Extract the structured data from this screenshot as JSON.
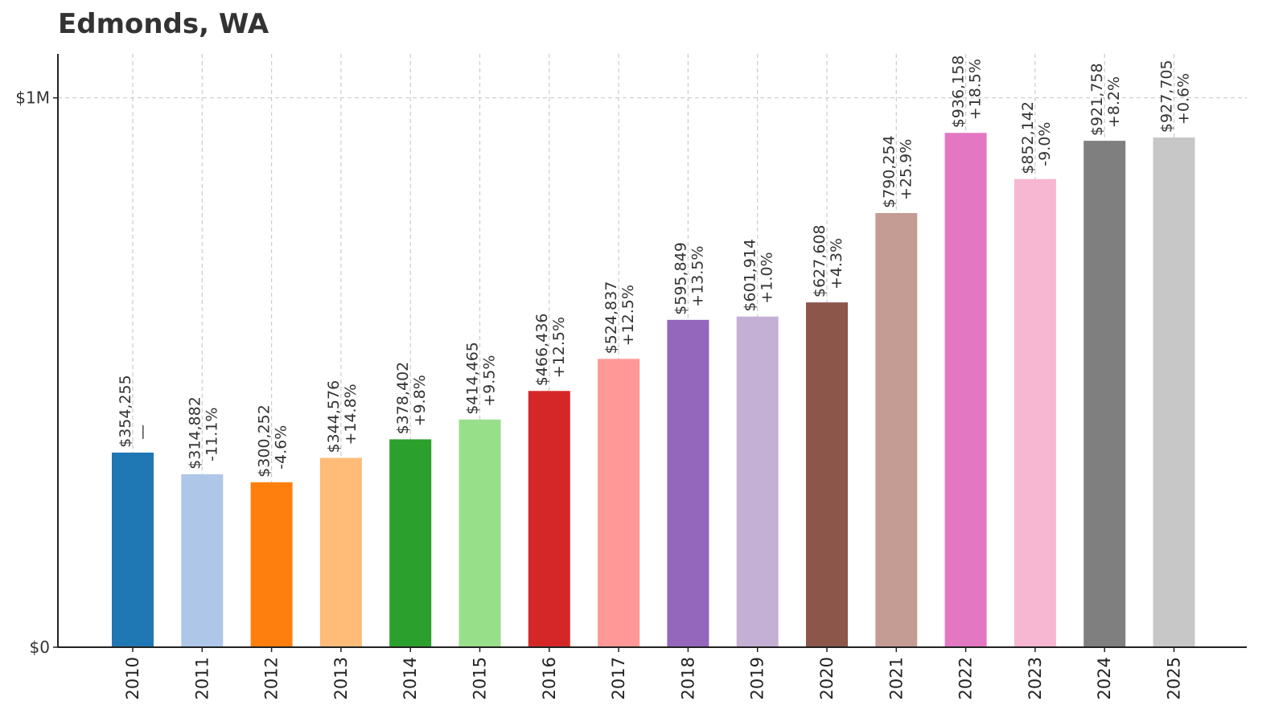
{
  "chart_data": {
    "type": "bar",
    "title": "Edmonds, WA",
    "xlabel": "",
    "ylabel": "",
    "categories": [
      "2010",
      "2011",
      "2012",
      "2013",
      "2014",
      "2015",
      "2016",
      "2017",
      "2018",
      "2019",
      "2020",
      "2021",
      "2022",
      "2023",
      "2024",
      "2025"
    ],
    "values": [
      354255,
      314882,
      300252,
      344576,
      378402,
      414465,
      466436,
      524837,
      595849,
      601914,
      627608,
      790254,
      936158,
      852142,
      921758,
      927705
    ],
    "value_labels": [
      "$354,255",
      "$314,882",
      "$300,252",
      "$344,576",
      "$378,402",
      "$414,465",
      "$466,436",
      "$524,837",
      "$595,849",
      "$601,914",
      "$627,608",
      "$790,254",
      "$936,158",
      "$852,142",
      "$921,758",
      "$927,705"
    ],
    "change_labels": [
      "—",
      "-11.1%",
      "-4.6%",
      "+14.8%",
      "+9.8%",
      "+9.5%",
      "+12.5%",
      "+12.5%",
      "+13.5%",
      "+1.0%",
      "+4.3%",
      "+25.9%",
      "+18.5%",
      "-9.0%",
      "+8.2%",
      "+0.6%"
    ],
    "colors": [
      "#1f77b4",
      "#aec7e8",
      "#ff7f0e",
      "#ffbb78",
      "#2ca02c",
      "#98df8a",
      "#d62728",
      "#ff9896",
      "#9467bd",
      "#c5b0d5",
      "#8c564b",
      "#c49c94",
      "#e377c2",
      "#f7b6d2",
      "#7f7f7f",
      "#c7c7c7"
    ],
    "y_ticks": [
      {
        "value": 0,
        "label": "$0"
      },
      {
        "value": 1000000,
        "label": "$1M"
      }
    ],
    "ylim": [
      0,
      1080000
    ],
    "grid": true,
    "legend": "none"
  }
}
